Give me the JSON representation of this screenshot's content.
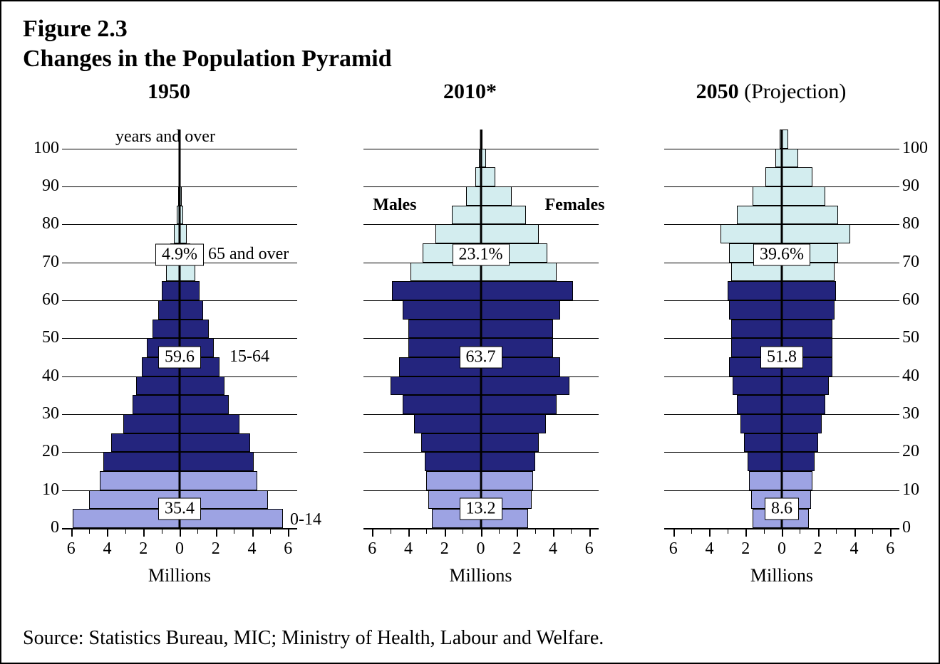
{
  "figure_number": "Figure 2.3",
  "figure_title": "Changes in the Population Pyramid",
  "source_text": "Source:  Statistics Bureau, MIC;  Ministry of Health, Labour and Welfare.",
  "y_axis_note": "years and over",
  "x_axis": {
    "label": "Millions",
    "ticks": [
      6,
      4,
      2,
      0,
      2,
      4,
      6
    ],
    "minor_step": 1,
    "range": 6.5
  },
  "y_axis": {
    "ticks": [
      0,
      10,
      20,
      30,
      40,
      50,
      60,
      70,
      80,
      90,
      100
    ],
    "max": 105
  },
  "colors": {
    "old": "#d3edef",
    "work": "#24257e",
    "young": "#9da3e3",
    "border": "#000000",
    "bg": "#ffffff"
  },
  "age_band_labels": {
    "old": "65 and over",
    "work": "15-64",
    "young": "0-14"
  },
  "gender_labels": {
    "male": "Males",
    "female": "Females"
  },
  "age_breaks": {
    "young_max": 14,
    "work_max": 64
  },
  "bar_step_years": 5,
  "pyramids": [
    {
      "title": "1950",
      "show_left_y_ticks": true,
      "show_right_y_ticks": false,
      "show_age_band_labels": true,
      "show_gender_labels": false,
      "show_years_over_note": true,
      "pct": {
        "old": "4.9%",
        "work": "59.6",
        "young": "35.4"
      },
      "pct_y": {
        "old": 72,
        "work": 45,
        "young": 5
      },
      "bars": [
        {
          "age_lo": 0,
          "m": 5.9,
          "f": 5.7
        },
        {
          "age_lo": 5,
          "m": 5.0,
          "f": 4.9
        },
        {
          "age_lo": 10,
          "m": 4.4,
          "f": 4.3
        },
        {
          "age_lo": 15,
          "m": 4.2,
          "f": 4.1
        },
        {
          "age_lo": 20,
          "m": 3.8,
          "f": 3.9
        },
        {
          "age_lo": 25,
          "m": 3.1,
          "f": 3.3
        },
        {
          "age_lo": 30,
          "m": 2.6,
          "f": 2.7
        },
        {
          "age_lo": 35,
          "m": 2.4,
          "f": 2.5
        },
        {
          "age_lo": 40,
          "m": 2.1,
          "f": 2.2
        },
        {
          "age_lo": 45,
          "m": 1.8,
          "f": 1.9
        },
        {
          "age_lo": 50,
          "m": 1.5,
          "f": 1.6
        },
        {
          "age_lo": 55,
          "m": 1.2,
          "f": 1.3
        },
        {
          "age_lo": 60,
          "m": 1.0,
          "f": 1.1
        },
        {
          "age_lo": 65,
          "m": 0.75,
          "f": 0.85
        },
        {
          "age_lo": 70,
          "m": 0.5,
          "f": 0.6
        },
        {
          "age_lo": 75,
          "m": 0.3,
          "f": 0.38
        },
        {
          "age_lo": 80,
          "m": 0.15,
          "f": 0.2
        },
        {
          "age_lo": 85,
          "m": 0.06,
          "f": 0.1
        },
        {
          "age_lo": 90,
          "m": 0.02,
          "f": 0.04
        },
        {
          "age_lo": 95,
          "m": 0.01,
          "f": 0.01
        }
      ]
    },
    {
      "title": "2010*",
      "show_left_y_ticks": false,
      "show_right_y_ticks": false,
      "show_age_band_labels": false,
      "show_gender_labels": true,
      "show_years_over_note": false,
      "pct": {
        "old": "23.1%",
        "work": "63.7",
        "young": "13.2"
      },
      "pct_y": {
        "old": 72,
        "work": 45,
        "young": 5
      },
      "bars": [
        {
          "age_lo": 0,
          "m": 2.7,
          "f": 2.6
        },
        {
          "age_lo": 5,
          "m": 2.9,
          "f": 2.8
        },
        {
          "age_lo": 10,
          "m": 3.0,
          "f": 2.9
        },
        {
          "age_lo": 15,
          "m": 3.1,
          "f": 3.0
        },
        {
          "age_lo": 20,
          "m": 3.3,
          "f": 3.2
        },
        {
          "age_lo": 25,
          "m": 3.7,
          "f": 3.6
        },
        {
          "age_lo": 30,
          "m": 4.3,
          "f": 4.2
        },
        {
          "age_lo": 35,
          "m": 5.0,
          "f": 4.9
        },
        {
          "age_lo": 40,
          "m": 4.5,
          "f": 4.4
        },
        {
          "age_lo": 45,
          "m": 4.0,
          "f": 4.0
        },
        {
          "age_lo": 50,
          "m": 4.0,
          "f": 4.0
        },
        {
          "age_lo": 55,
          "m": 4.3,
          "f": 4.4
        },
        {
          "age_lo": 60,
          "m": 4.9,
          "f": 5.1
        },
        {
          "age_lo": 65,
          "m": 3.9,
          "f": 4.2
        },
        {
          "age_lo": 70,
          "m": 3.2,
          "f": 3.7
        },
        {
          "age_lo": 75,
          "m": 2.5,
          "f": 3.2
        },
        {
          "age_lo": 80,
          "m": 1.6,
          "f": 2.5
        },
        {
          "age_lo": 85,
          "m": 0.8,
          "f": 1.7
        },
        {
          "age_lo": 90,
          "m": 0.3,
          "f": 0.8
        },
        {
          "age_lo": 95,
          "m": 0.08,
          "f": 0.3
        },
        {
          "age_lo": 100,
          "m": 0.02,
          "f": 0.1
        }
      ]
    },
    {
      "title": "2050 (Projection)",
      "title_weight_split": true,
      "show_left_y_ticks": false,
      "show_right_y_ticks": true,
      "show_age_band_labels": false,
      "show_gender_labels": false,
      "show_years_over_note": false,
      "pct": {
        "old": "39.6%",
        "work": "51.8",
        "young": "8.6"
      },
      "pct_y": {
        "old": 72,
        "work": 45,
        "young": 5
      },
      "bars": [
        {
          "age_lo": 0,
          "m": 1.6,
          "f": 1.5
        },
        {
          "age_lo": 5,
          "m": 1.7,
          "f": 1.6
        },
        {
          "age_lo": 10,
          "m": 1.8,
          "f": 1.7
        },
        {
          "age_lo": 15,
          "m": 1.9,
          "f": 1.8
        },
        {
          "age_lo": 20,
          "m": 2.1,
          "f": 2.0
        },
        {
          "age_lo": 25,
          "m": 2.3,
          "f": 2.2
        },
        {
          "age_lo": 30,
          "m": 2.5,
          "f": 2.4
        },
        {
          "age_lo": 35,
          "m": 2.7,
          "f": 2.6
        },
        {
          "age_lo": 40,
          "m": 2.9,
          "f": 2.8
        },
        {
          "age_lo": 45,
          "m": 2.8,
          "f": 2.8
        },
        {
          "age_lo": 50,
          "m": 2.8,
          "f": 2.8
        },
        {
          "age_lo": 55,
          "m": 2.9,
          "f": 2.9
        },
        {
          "age_lo": 60,
          "m": 3.0,
          "f": 3.0
        },
        {
          "age_lo": 65,
          "m": 2.8,
          "f": 2.9
        },
        {
          "age_lo": 70,
          "m": 2.9,
          "f": 3.1
        },
        {
          "age_lo": 75,
          "m": 3.4,
          "f": 3.8
        },
        {
          "age_lo": 80,
          "m": 2.5,
          "f": 3.1
        },
        {
          "age_lo": 85,
          "m": 1.6,
          "f": 2.4
        },
        {
          "age_lo": 90,
          "m": 0.9,
          "f": 1.7
        },
        {
          "age_lo": 95,
          "m": 0.35,
          "f": 0.9
        },
        {
          "age_lo": 100,
          "m": 0.1,
          "f": 0.35
        }
      ]
    }
  ]
}
